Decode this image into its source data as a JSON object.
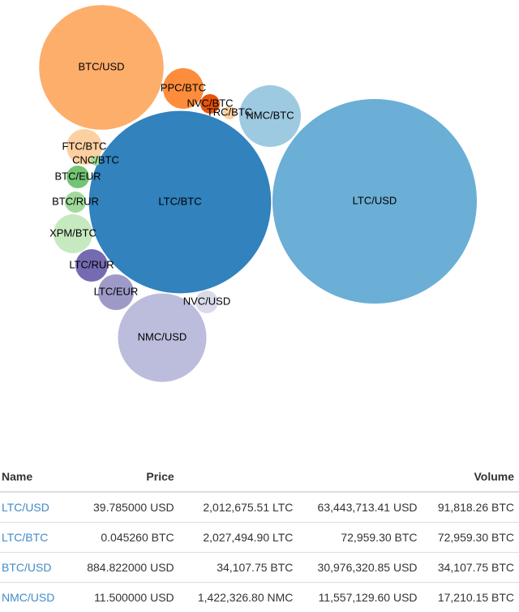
{
  "chart_data": {
    "type": "bubble",
    "categories": [
      "BTC/USD",
      "PPC/BTC",
      "NVC/BTC",
      "TRC/BTC",
      "NMC/BTC",
      "LTC/BTC",
      "LTC/USD",
      "FTC/BTC",
      "CNC/BTC",
      "BTC/EUR",
      "BTC/RUR",
      "XPM/BTC",
      "LTC/RUR",
      "LTC/EUR",
      "NVC/USD",
      "NMC/USD"
    ],
    "values": [
      34107.75,
      3615,
      833,
      370,
      8350,
      72959.3,
      91818.26,
      2800,
      210,
      1130,
      975,
      3330,
      2310,
      2800,
      1130,
      17210.15
    ],
    "colors": [
      "#fdae6b",
      "#fd8d3c",
      "#e6550d",
      "#fdd0a2",
      "#9ecae1",
      "#3182bd",
      "#6baed6",
      "#fdd0a2",
      "#a1d99b",
      "#74c476",
      "#a1d99b",
      "#c7e9c0",
      "#756bb1",
      "#9e9ac8",
      "#dadaeb",
      "#bcbddc"
    ]
  },
  "table": {
    "header": {
      "name": "Name",
      "price": "Price",
      "volume": "Volume"
    },
    "rows": [
      [
        "LTC/USD",
        "39.785000 USD",
        "2,012,675.51 LTC",
        "63,443,713.41 USD",
        "91,818.26 BTC"
      ],
      [
        "LTC/BTC",
        "0.045260 BTC",
        "2,027,494.90 LTC",
        "72,959.30 BTC",
        "72,959.30 BTC"
      ],
      [
        "BTC/USD",
        "884.822000 USD",
        "34,107.75 BTC",
        "30,976,320.85 USD",
        "34,107.75 BTC"
      ],
      [
        "NMC/USD",
        "11.500000 USD",
        "1,422,326.80 NMC",
        "11,557,129.60 USD",
        "17,210.15 BTC"
      ]
    ]
  }
}
